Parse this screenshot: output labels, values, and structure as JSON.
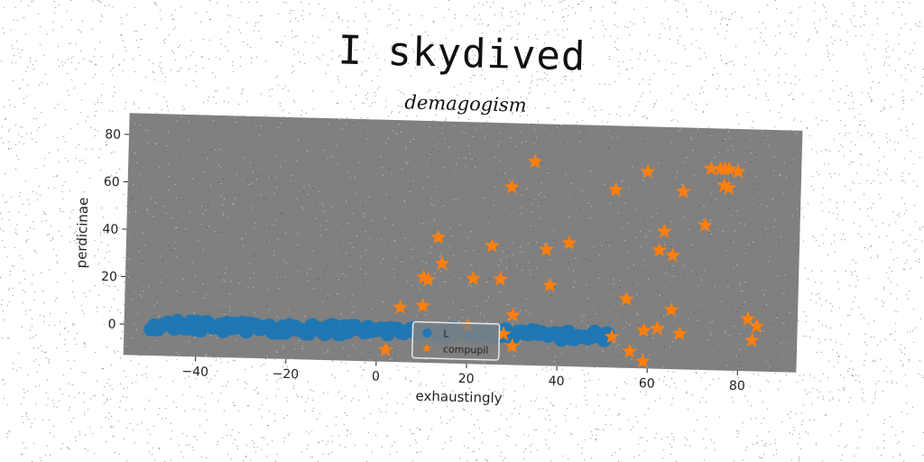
{
  "suptitle": "I skydived",
  "chart_data": {
    "type": "scatter",
    "title": "demagogism",
    "xlabel": "exhaustingly",
    "ylabel": "perdicinae",
    "xlim": [
      -56,
      93
    ],
    "ylim": [
      -13,
      89
    ],
    "xticks": [
      -40,
      -20,
      0,
      20,
      40,
      60,
      80
    ],
    "yticks": [
      0,
      20,
      40,
      60,
      80
    ],
    "grid": false,
    "background": "#808080",
    "legend": {
      "placement": "lower-center"
    },
    "series": [
      {
        "name": "L",
        "marker": "circle",
        "color": "#1f77b4",
        "x_range": [
          -50,
          51
        ],
        "y_range": [
          -2,
          2
        ],
        "count": 140
      },
      {
        "name": "compupil",
        "marker": "star",
        "color": "#ff7f0e",
        "points": [
          [
            2,
            -8
          ],
          [
            5,
            10
          ],
          [
            10,
            11
          ],
          [
            10,
            23
          ],
          [
            11,
            22
          ],
          [
            14,
            29
          ],
          [
            13,
            40
          ],
          [
            20,
            3
          ],
          [
            21,
            23
          ],
          [
            25,
            37
          ],
          [
            27,
            23
          ],
          [
            28,
            0
          ],
          [
            29,
            62
          ],
          [
            30,
            8
          ],
          [
            30,
            -5
          ],
          [
            34,
            73
          ],
          [
            37,
            36
          ],
          [
            38,
            21
          ],
          [
            42,
            39
          ],
          [
            52,
            62
          ],
          [
            52,
            0
          ],
          [
            55,
            16
          ],
          [
            56,
            -6
          ],
          [
            59,
            70
          ],
          [
            59,
            3
          ],
          [
            59,
            -10
          ],
          [
            62,
            4
          ],
          [
            62,
            37
          ],
          [
            63,
            45
          ],
          [
            65,
            35
          ],
          [
            65,
            12
          ],
          [
            67,
            62
          ],
          [
            67,
            2
          ],
          [
            72,
            48
          ],
          [
            73,
            72
          ],
          [
            75,
            72
          ],
          [
            76,
            72
          ],
          [
            76,
            65
          ],
          [
            77,
            72
          ],
          [
            77,
            64
          ],
          [
            79,
            71
          ],
          [
            82,
            9
          ],
          [
            84,
            6
          ],
          [
            83,
            0
          ]
        ]
      }
    ]
  }
}
